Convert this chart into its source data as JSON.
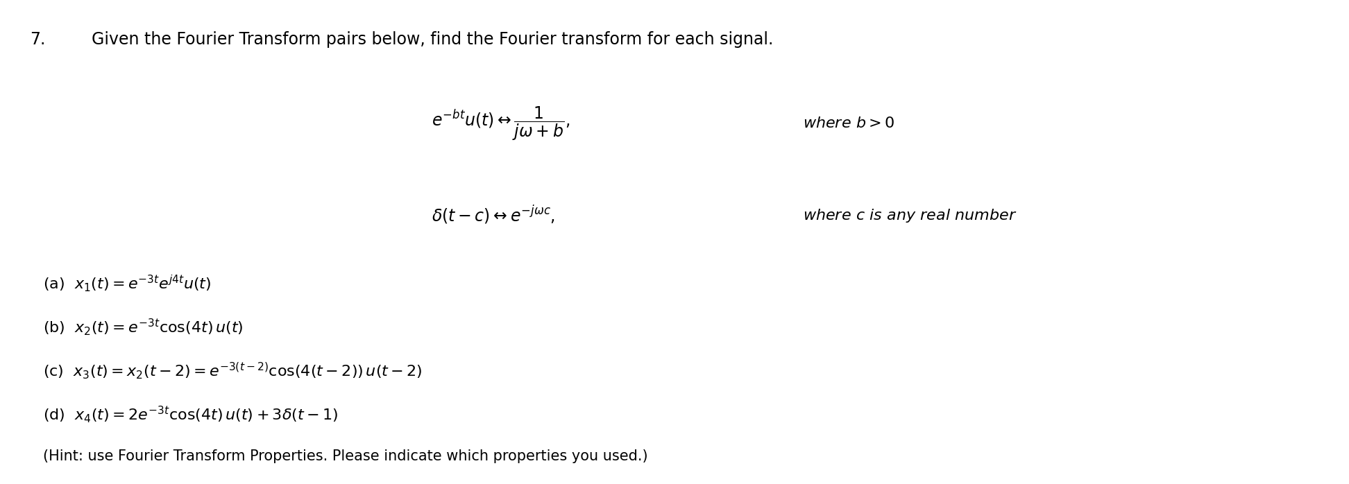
{
  "figsize": [
    19.44,
    6.98
  ],
  "dpi": 100,
  "bg_color": "#ffffff",
  "number": "7.",
  "title": "Given the Fourier Transform pairs below, find the Fourier transform for each signal.",
  "pair1_left": "$e^{-bt}u(t) \\leftrightarrow \\dfrac{1}{j\\omega + b},$",
  "pair1_right": "$where\\ b > 0$",
  "pair2_left": "$\\delta(t - c) \\leftrightarrow e^{-j\\omega c},$",
  "pair2_right": "$where\\ c\\ is\\ any\\ real\\ number$",
  "part_a": "(a)  $x_1(t) = e^{-3t}e^{j4t}u(t)$",
  "part_b": "(b)  $x_2(t) = e^{-3t}\\cos(4t)\\,u(t)$",
  "part_c": "(c)  $x_3(t) = x_2(t-2) = e^{-3(t-2)}\\cos(4(t-2))\\,u(t-2)$",
  "part_d": "(d)  $x_4(t) = 2e^{-3t}\\cos(4t)\\,u(t) + 3\\delta(t-1)$",
  "hint": "(Hint: use Fourier Transform Properties. Please indicate which properties you used.)",
  "title_fontsize": 17,
  "body_fontsize": 16,
  "pair_fontsize": 17,
  "where_fontsize": 16,
  "number_fontsize": 17
}
